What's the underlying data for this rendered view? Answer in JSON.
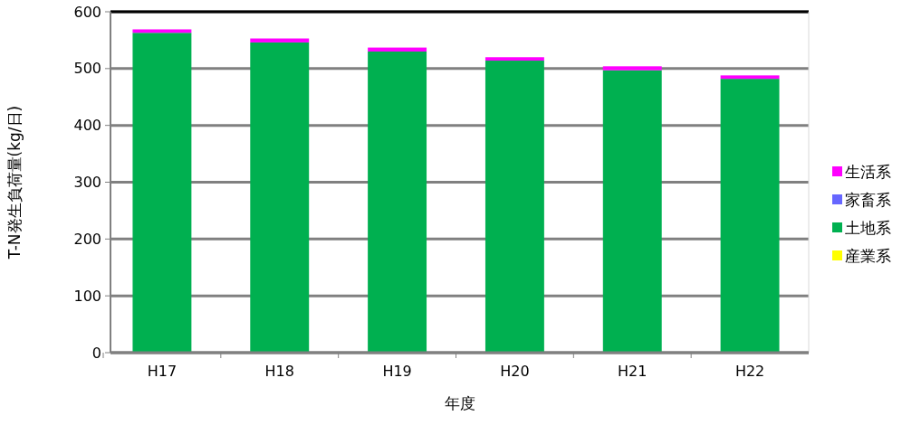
{
  "chart_data": {
    "type": "bar",
    "stacked": true,
    "xlabel": "年度",
    "ylabel": "T-N発生負荷量(kg/日)",
    "categories": [
      "H17",
      "H18",
      "H19",
      "H20",
      "H21",
      "H22"
    ],
    "series": [
      {
        "name": "産業系",
        "color": "#ffff00",
        "values": [
          0,
          0,
          0,
          0,
          0,
          0
        ]
      },
      {
        "name": "土地系",
        "color": "#00b050",
        "values": [
          563,
          546,
          530,
          514,
          497,
          482
        ]
      },
      {
        "name": "家畜系",
        "color": "#6666ff",
        "values": [
          0,
          0,
          0,
          0,
          0,
          0
        ]
      },
      {
        "name": "生活系",
        "color": "#ff00ff",
        "values": [
          6,
          7,
          7,
          6,
          7,
          6
        ]
      }
    ],
    "ylim": [
      0,
      600
    ],
    "yticks": [
      0,
      100,
      200,
      300,
      400,
      500,
      600
    ],
    "grid": "y",
    "legend": "right"
  }
}
